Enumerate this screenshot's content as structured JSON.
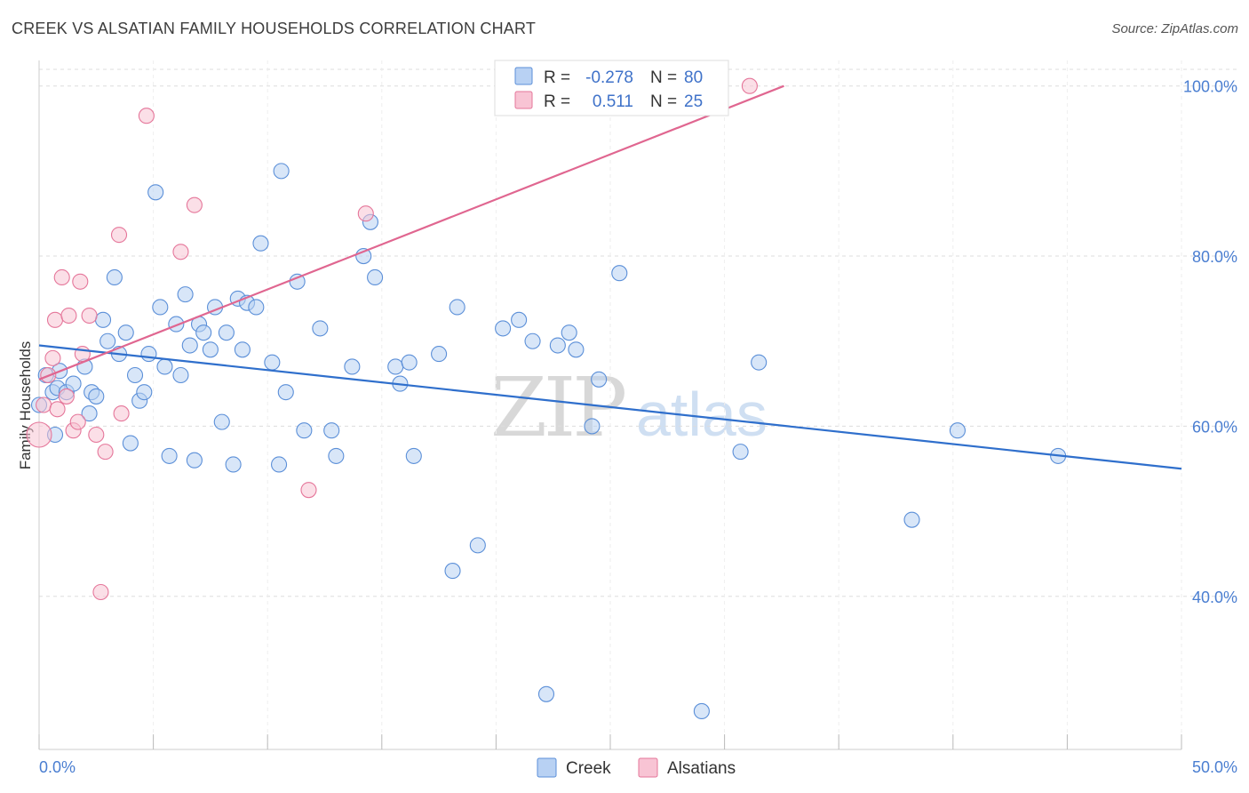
{
  "title": "CREEK VS ALSATIAN FAMILY HOUSEHOLDS CORRELATION CHART",
  "source": "Source: ZipAtlas.com",
  "colors": {
    "creek": "#5b8fd8",
    "creek_fill": "#b8d1f3",
    "alsatians": "#e5769a",
    "alsatians_fill": "#f8c4d4",
    "creek_line": "#2f6fcc",
    "alsatians_line": "#e06690",
    "tick_text": "#4a7ed1",
    "grid": "#dddddd"
  },
  "legend_top": {
    "rows": [
      {
        "r_label": "R =",
        "r_value": "-0.278",
        "n_label": "N =",
        "n_value": "80"
      },
      {
        "r_label": "R =",
        "r_value": "0.511",
        "n_label": "N =",
        "n_value": "25"
      }
    ]
  },
  "watermark": {
    "zip": "ZIP",
    "atlas": "atlas"
  },
  "chart_data": {
    "type": "scatter",
    "title": "CREEK VS ALSATIAN FAMILY HOUSEHOLDS CORRELATION CHART",
    "xlabel": "",
    "ylabel": "Family Households",
    "xlim": [
      0,
      50
    ],
    "ylim": [
      22,
      103
    ],
    "x_tick_labels": [
      "0.0%",
      "50.0%"
    ],
    "y_ticks": [
      40,
      60,
      80,
      100
    ],
    "y_tick_labels": [
      "40.0%",
      "60.0%",
      "80.0%",
      "100.0%"
    ],
    "grid": true,
    "legend": "bottom-center",
    "series": [
      {
        "name": "Creek",
        "r": -0.278,
        "n": 80,
        "trend": [
          [
            0,
            69.5
          ],
          [
            50,
            55.0
          ]
        ],
        "points": [
          [
            0.0,
            62.5
          ],
          [
            0.3,
            66.0
          ],
          [
            0.6,
            64.0
          ],
          [
            0.7,
            59.0
          ],
          [
            0.8,
            64.5
          ],
          [
            0.9,
            66.5
          ],
          [
            1.2,
            64.0
          ],
          [
            1.5,
            65.0
          ],
          [
            2.0,
            67.0
          ],
          [
            2.2,
            61.5
          ],
          [
            2.3,
            64.0
          ],
          [
            2.5,
            63.5
          ],
          [
            2.8,
            72.5
          ],
          [
            3.0,
            70.0
          ],
          [
            3.3,
            77.5
          ],
          [
            3.5,
            68.5
          ],
          [
            3.8,
            71.0
          ],
          [
            4.0,
            58.0
          ],
          [
            4.2,
            66.0
          ],
          [
            4.4,
            63.0
          ],
          [
            4.6,
            64.0
          ],
          [
            4.8,
            68.5
          ],
          [
            5.1,
            87.5
          ],
          [
            5.3,
            74.0
          ],
          [
            5.5,
            67.0
          ],
          [
            5.7,
            56.5
          ],
          [
            6.0,
            72.0
          ],
          [
            6.2,
            66.0
          ],
          [
            6.4,
            75.5
          ],
          [
            6.6,
            69.5
          ],
          [
            6.8,
            56.0
          ],
          [
            7.0,
            72.0
          ],
          [
            7.2,
            71.0
          ],
          [
            7.5,
            69.0
          ],
          [
            7.7,
            74.0
          ],
          [
            8.0,
            60.5
          ],
          [
            8.2,
            71.0
          ],
          [
            8.5,
            55.5
          ],
          [
            8.7,
            75.0
          ],
          [
            8.9,
            69.0
          ],
          [
            9.1,
            74.5
          ],
          [
            9.5,
            74.0
          ],
          [
            9.7,
            81.5
          ],
          [
            10.2,
            67.5
          ],
          [
            10.5,
            55.5
          ],
          [
            10.6,
            90.0
          ],
          [
            10.8,
            64.0
          ],
          [
            11.3,
            77.0
          ],
          [
            11.6,
            59.5
          ],
          [
            12.3,
            71.5
          ],
          [
            12.8,
            59.5
          ],
          [
            13.0,
            56.5
          ],
          [
            13.7,
            67.0
          ],
          [
            14.2,
            80.0
          ],
          [
            14.5,
            84.0
          ],
          [
            14.7,
            77.5
          ],
          [
            15.6,
            67.0
          ],
          [
            15.8,
            65.0
          ],
          [
            16.2,
            67.5
          ],
          [
            16.4,
            56.5
          ],
          [
            17.5,
            68.5
          ],
          [
            18.1,
            43.0
          ],
          [
            18.3,
            74.0
          ],
          [
            19.2,
            46.0
          ],
          [
            20.3,
            71.5
          ],
          [
            21.0,
            72.5
          ],
          [
            21.6,
            70.0
          ],
          [
            22.2,
            28.5
          ],
          [
            22.7,
            69.5
          ],
          [
            23.2,
            71.0
          ],
          [
            23.5,
            69.0
          ],
          [
            24.2,
            60.0
          ],
          [
            24.5,
            65.5
          ],
          [
            25.4,
            78.0
          ],
          [
            29.0,
            26.5
          ],
          [
            30.7,
            57.0
          ],
          [
            31.5,
            67.5
          ],
          [
            38.2,
            49.0
          ],
          [
            40.2,
            59.5
          ],
          [
            44.6,
            56.5
          ]
        ]
      },
      {
        "name": "Alsatians",
        "r": 0.511,
        "n": 25,
        "trend": [
          [
            0,
            65.5
          ],
          [
            32.6,
            100.0
          ]
        ],
        "points": [
          [
            0.0,
            59.0
          ],
          [
            0.2,
            62.5
          ],
          [
            0.4,
            66.0
          ],
          [
            0.6,
            68.0
          ],
          [
            0.7,
            72.5
          ],
          [
            0.8,
            62.0
          ],
          [
            1.0,
            77.5
          ],
          [
            1.2,
            63.5
          ],
          [
            1.3,
            73.0
          ],
          [
            1.5,
            59.5
          ],
          [
            1.7,
            60.5
          ],
          [
            1.8,
            77.0
          ],
          [
            1.9,
            68.5
          ],
          [
            2.2,
            73.0
          ],
          [
            2.5,
            59.0
          ],
          [
            2.7,
            40.5
          ],
          [
            2.9,
            57.0
          ],
          [
            3.5,
            82.5
          ],
          [
            3.6,
            61.5
          ],
          [
            4.7,
            96.5
          ],
          [
            6.2,
            80.5
          ],
          [
            6.8,
            86.0
          ],
          [
            11.8,
            52.5
          ],
          [
            14.3,
            85.0
          ],
          [
            31.1,
            100.0
          ]
        ]
      }
    ]
  }
}
